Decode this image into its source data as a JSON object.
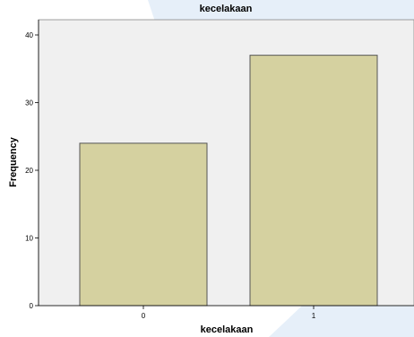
{
  "chart_data": {
    "type": "bar",
    "title": "kecelakaan",
    "xlabel": "kecelakaan",
    "ylabel": "Frequency",
    "categories": [
      "0",
      "1"
    ],
    "values": [
      24,
      37
    ],
    "ylim": [
      0,
      42
    ],
    "yticks": [
      0,
      10,
      20,
      30,
      40
    ],
    "grid": false,
    "legend": "none",
    "colors": {
      "bar_fill": "#d5d1a0",
      "bar_stroke": "#555555",
      "plot_background": "#f0f0f0",
      "watermark": "#e3edf8"
    }
  }
}
